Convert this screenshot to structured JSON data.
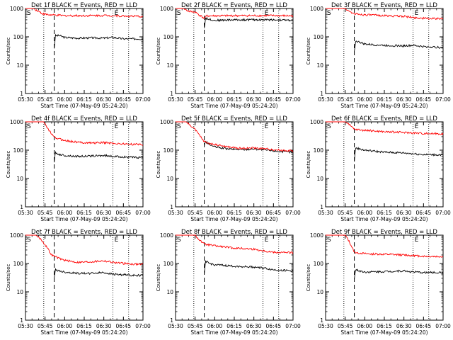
{
  "figure": {
    "x_ticks": [
      "05:30",
      "05:45",
      "06:00",
      "06:15",
      "06:30",
      "06:45",
      "07:00"
    ],
    "x_label": "Start Time (07-May-09 05:24:20)",
    "y_label": "Counts/sec",
    "y_ticks": [
      "1",
      "10",
      "100",
      "1000"
    ],
    "corner_marks": {
      "left": "S",
      "right": "E"
    },
    "colors": {
      "events": "#000000",
      "lld": "#ff0000",
      "axes": "#000000"
    }
  },
  "chart_data": [
    {
      "type": "line",
      "title": "Det 1f BLACK = Events, RED = LLD",
      "xlabel": "Start Time (07-May-09 05:24:20)",
      "ylabel": "Counts/sec",
      "x_range": [
        "05:30",
        "07:00"
      ],
      "ylim": [
        1,
        1000
      ],
      "log_y": true,
      "vlines_dotted": [
        "05:44",
        "06:37",
        "06:49"
      ],
      "vline_dashed": "05:52",
      "series": [
        {
          "key": "events",
          "x": [
            "05:52",
            "05:53",
            "05:56",
            "06:00",
            "06:10",
            "06:20",
            "06:30",
            "06:37",
            "06:45",
            "06:55",
            "07:00"
          ],
          "values": [
            40,
            110,
            110,
            95,
            90,
            92,
            90,
            95,
            85,
            85,
            85
          ]
        },
        {
          "key": "lld",
          "x": [
            "05:30",
            "05:36",
            "05:40",
            "05:43",
            "05:48",
            "05:52",
            "06:00",
            "06:15",
            "06:30",
            "06:37",
            "06:45",
            "07:00"
          ],
          "values": [
            1000,
            1000,
            800,
            650,
            600,
            580,
            560,
            560,
            570,
            560,
            540,
            520
          ]
        }
      ]
    },
    {
      "type": "line",
      "title": "Det 2f BLACK = Events, RED = LLD",
      "xlabel": "Start Time (07-May-09 05:24:20)",
      "ylabel": "Counts/sec",
      "x_range": [
        "05:30",
        "07:00"
      ],
      "ylim": [
        1,
        1000
      ],
      "log_y": true,
      "vlines_dotted": [
        "05:44",
        "06:37",
        "06:49"
      ],
      "vline_dashed": "05:52",
      "series": [
        {
          "key": "events",
          "x": [
            "05:52",
            "05:53",
            "06:00",
            "06:15",
            "06:30",
            "06:45",
            "07:00"
          ],
          "values": [
            200,
            450,
            380,
            400,
            400,
            400,
            380
          ]
        },
        {
          "key": "lld",
          "x": [
            "05:30",
            "05:36",
            "05:38",
            "05:40",
            "05:45",
            "05:52",
            "05:54",
            "06:00",
            "06:15",
            "06:30",
            "06:45",
            "07:00"
          ],
          "values": [
            1000,
            1000,
            900,
            800,
            750,
            450,
            550,
            550,
            560,
            560,
            560,
            550
          ]
        }
      ]
    },
    {
      "type": "line",
      "title": "Det 3f BLACK = Events, RED = LLD",
      "xlabel": "Start Time (07-May-09 05:24:20)",
      "ylabel": "Counts/sec",
      "x_range": [
        "05:30",
        "07:00"
      ],
      "ylim": [
        1,
        1000
      ],
      "log_y": true,
      "vlines_dotted": [
        "05:44",
        "06:37",
        "06:49"
      ],
      "vline_dashed": "05:52",
      "series": [
        {
          "key": "events",
          "x": [
            "05:52",
            "05:53",
            "05:56",
            "06:00",
            "06:15",
            "06:30",
            "06:37",
            "06:45",
            "07:00"
          ],
          "values": [
            30,
            70,
            65,
            55,
            50,
            48,
            50,
            45,
            42
          ]
        },
        {
          "key": "lld",
          "x": [
            "05:30",
            "05:45",
            "05:48",
            "05:52",
            "06:00",
            "06:15",
            "06:30",
            "06:37",
            "06:45",
            "07:00"
          ],
          "values": [
            1000,
            1000,
            800,
            650,
            600,
            560,
            530,
            480,
            450,
            430
          ]
        }
      ]
    },
    {
      "type": "line",
      "title": "Det 4f BLACK = Events, RED = LLD",
      "xlabel": "Start Time (07-May-09 05:24:20)",
      "ylabel": "Counts/sec",
      "x_range": [
        "05:30",
        "07:00"
      ],
      "ylim": [
        1,
        1000
      ],
      "log_y": true,
      "vlines_dotted": [
        "05:44",
        "06:37",
        "06:49"
      ],
      "vline_dashed": "05:52",
      "series": [
        {
          "key": "events",
          "x": [
            "05:52",
            "05:53",
            "05:56",
            "06:00",
            "06:10",
            "06:20",
            "06:30",
            "06:37",
            "06:45",
            "06:55",
            "07:00"
          ],
          "values": [
            40,
            80,
            70,
            65,
            60,
            62,
            65,
            60,
            58,
            55,
            55
          ]
        },
        {
          "key": "lld",
          "x": [
            "05:30",
            "05:44",
            "05:48",
            "05:52",
            "05:56",
            "06:00",
            "06:10",
            "06:20",
            "06:30",
            "06:37",
            "06:45",
            "06:55",
            "07:00"
          ],
          "values": [
            1000,
            1000,
            500,
            280,
            250,
            220,
            190,
            180,
            185,
            175,
            165,
            160,
            160
          ]
        }
      ]
    },
    {
      "type": "line",
      "title": "Det 5f BLACK = Events, RED = LLD",
      "xlabel": "Start Time (07-May-09 05:24:20)",
      "ylabel": "Counts/sec",
      "x_range": [
        "05:30",
        "07:00"
      ],
      "ylim": [
        1,
        1000
      ],
      "log_y": true,
      "vlines_dotted": [
        "05:44",
        "06:37",
        "06:49"
      ],
      "vline_dashed": "05:52",
      "series": [
        {
          "key": "events",
          "x": [
            "05:52",
            "05:53",
            "05:56",
            "06:00",
            "06:10",
            "06:20",
            "06:30",
            "06:40",
            "06:50",
            "07:00"
          ],
          "values": [
            150,
            200,
            160,
            130,
            110,
            105,
            110,
            100,
            90,
            85
          ]
        },
        {
          "key": "lld",
          "x": [
            "05:30",
            "05:38",
            "05:44",
            "05:48",
            "05:52",
            "05:56",
            "06:00",
            "06:10",
            "06:20",
            "06:30",
            "06:40",
            "06:50",
            "07:00"
          ],
          "values": [
            1000,
            1000,
            600,
            350,
            200,
            170,
            160,
            130,
            115,
            120,
            110,
            100,
            95
          ]
        }
      ]
    },
    {
      "type": "line",
      "title": "Det 6f BLACK = Events, RED = LLD",
      "xlabel": "Start Time (07-May-09 05:24:20)",
      "ylabel": "Counts/sec",
      "x_range": [
        "05:30",
        "07:00"
      ],
      "ylim": [
        1,
        1000
      ],
      "log_y": true,
      "vlines_dotted": [
        "05:44",
        "06:37",
        "06:49"
      ],
      "vline_dashed": "05:52",
      "series": [
        {
          "key": "events",
          "x": [
            "05:52",
            "05:53",
            "05:56",
            "06:00",
            "06:15",
            "06:30",
            "06:37",
            "06:45",
            "07:00"
          ],
          "values": [
            40,
            120,
            110,
            100,
            85,
            80,
            75,
            70,
            68
          ]
        },
        {
          "key": "lld",
          "x": [
            "05:30",
            "05:45",
            "05:48",
            "05:52",
            "06:00",
            "06:15",
            "06:30",
            "06:37",
            "06:45",
            "07:00"
          ],
          "values": [
            1000,
            1000,
            800,
            550,
            500,
            450,
            420,
            410,
            390,
            380
          ]
        }
      ]
    },
    {
      "type": "line",
      "title": "Det 7f BLACK = Events, RED = LLD",
      "xlabel": "Start Time (07-May-09 05:24:20)",
      "ylabel": "Counts/sec",
      "x_range": [
        "05:30",
        "07:00"
      ],
      "ylim": [
        1,
        1000
      ],
      "log_y": true,
      "vlines_dotted": [
        "05:44",
        "06:37",
        "06:49"
      ],
      "vline_dashed": "05:52",
      "series": [
        {
          "key": "events",
          "x": [
            "05:52",
            "05:53",
            "05:56",
            "06:00",
            "06:10",
            "06:20",
            "06:30",
            "06:37",
            "06:45",
            "06:55",
            "07:00"
          ],
          "values": [
            30,
            60,
            55,
            50,
            45,
            45,
            48,
            42,
            40,
            38,
            38
          ]
        },
        {
          "key": "lld",
          "x": [
            "05:30",
            "05:38",
            "05:42",
            "05:46",
            "05:50",
            "05:56",
            "06:00",
            "06:10",
            "06:20",
            "06:30",
            "06:37",
            "06:45",
            "06:55",
            "07:00"
          ],
          "values": [
            1000,
            1000,
            700,
            400,
            200,
            150,
            130,
            110,
            115,
            125,
            110,
            100,
            95,
            95
          ]
        }
      ]
    },
    {
      "type": "line",
      "title": "Det 8f BLACK = Events, RED = LLD",
      "xlabel": "Start Time (07-May-09 05:24:20)",
      "ylabel": "Counts/sec",
      "x_range": [
        "05:30",
        "07:00"
      ],
      "ylim": [
        1,
        1000
      ],
      "log_y": true,
      "vlines_dotted": [
        "05:44",
        "06:37",
        "06:49"
      ],
      "vline_dashed": "05:52",
      "series": [
        {
          "key": "events",
          "x": [
            "05:52",
            "05:53",
            "05:56",
            "06:00",
            "06:15",
            "06:30",
            "06:37",
            "06:45",
            "07:00"
          ],
          "values": [
            40,
            120,
            100,
            90,
            80,
            75,
            70,
            60,
            55
          ]
        },
        {
          "key": "lld",
          "x": [
            "05:30",
            "05:45",
            "05:48",
            "05:52",
            "06:00",
            "06:15",
            "06:30",
            "06:37",
            "06:45",
            "07:00"
          ],
          "values": [
            1000,
            1000,
            700,
            480,
            420,
            350,
            320,
            280,
            250,
            240
          ]
        }
      ]
    },
    {
      "type": "line",
      "title": "Det 9f BLACK = Events, RED = LLD",
      "xlabel": "Start Time (07-May-09 05:24:20)",
      "ylabel": "Counts/sec",
      "x_range": [
        "05:30",
        "07:00"
      ],
      "ylim": [
        1,
        1000
      ],
      "log_y": true,
      "vlines_dotted": [
        "05:44",
        "06:37",
        "06:49"
      ],
      "vline_dashed": "05:52",
      "series": [
        {
          "key": "events",
          "x": [
            "05:52",
            "05:53",
            "05:56",
            "06:00",
            "06:15",
            "06:30",
            "06:37",
            "06:45",
            "07:00"
          ],
          "values": [
            30,
            60,
            55,
            50,
            52,
            55,
            50,
            48,
            48
          ]
        },
        {
          "key": "lld",
          "x": [
            "05:30",
            "05:45",
            "05:48",
            "05:52",
            "06:00",
            "06:15",
            "06:30",
            "06:37",
            "06:45",
            "07:00"
          ],
          "values": [
            1000,
            1000,
            600,
            250,
            220,
            210,
            200,
            190,
            180,
            175
          ]
        }
      ]
    }
  ]
}
